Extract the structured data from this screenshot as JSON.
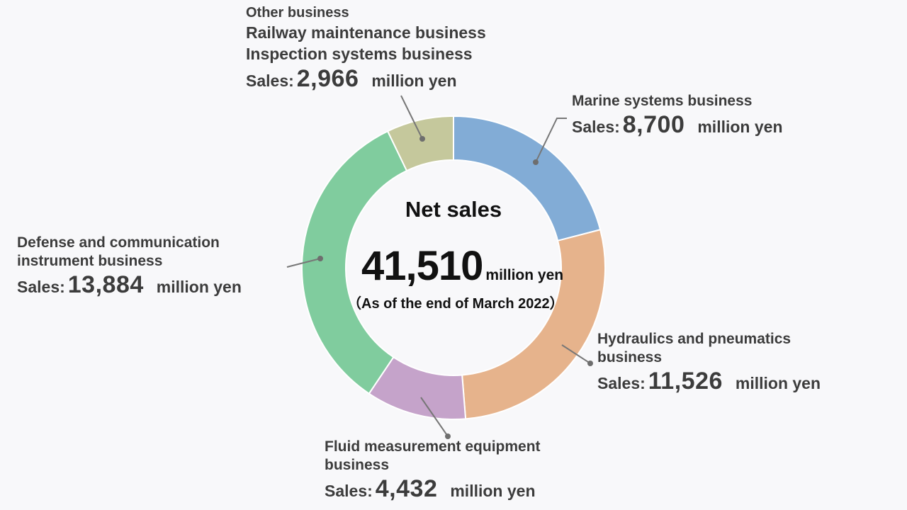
{
  "center": {
    "title": "Net sales",
    "total": "41,510",
    "unit": "million yen",
    "note": "（As of the end of March 2022）"
  },
  "chart_data": {
    "type": "pie",
    "title": "Net sales",
    "total": 41510,
    "total_unit": "million yen",
    "slices": [
      {
        "name_lines": [
          "Marine systems business"
        ],
        "value": 8700,
        "value_text": "8,700",
        "color": "#82acd6"
      },
      {
        "name_lines": [
          "Hydraulics and pneumatics",
          "business"
        ],
        "value": 11526,
        "value_text": "11,526",
        "color": "#e6b38c"
      },
      {
        "name_lines": [
          "Fluid measurement equipment",
          "business"
        ],
        "value": 4432,
        "value_text": "4,432",
        "color": "#c5a3ca"
      },
      {
        "name_lines": [
          "Defense and communication",
          "instrument business"
        ],
        "value": 13884,
        "value_text": "13,884",
        "color": "#80cc9e"
      },
      {
        "name_lines": [
          "Other business",
          "Railway maintenance business",
          "Inspection systems business"
        ],
        "value": 2966,
        "value_text": "2,966",
        "color": "#c5c89c"
      }
    ],
    "sales_prefix": "Sales:",
    "unit": "million yen"
  }
}
